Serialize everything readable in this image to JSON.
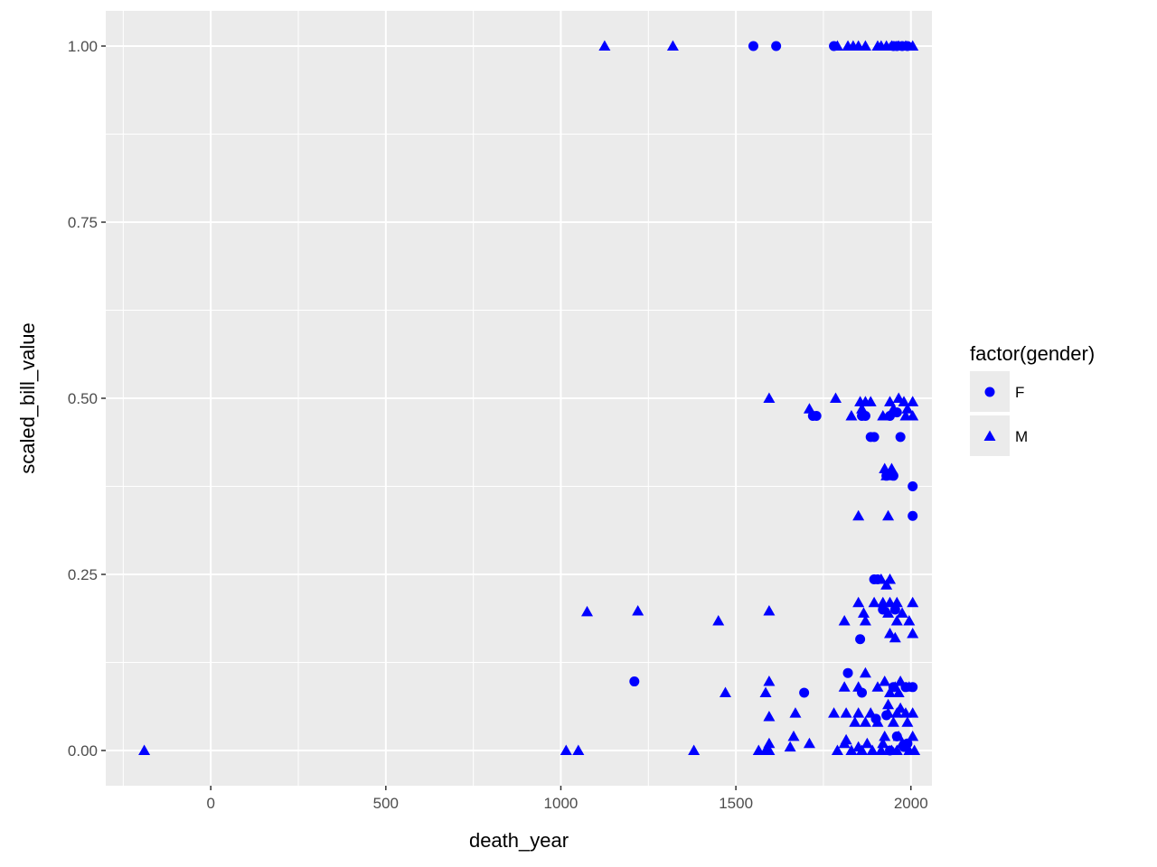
{
  "chart_data": {
    "type": "scatter",
    "title": "",
    "xlabel": "death_year",
    "ylabel": "scaled_bill_value",
    "xlim": [
      -300,
      2060
    ],
    "ylim": [
      -0.05,
      1.05
    ],
    "x_ticks": [
      0,
      500,
      1000,
      1500,
      2000
    ],
    "y_ticks": [
      0.0,
      0.25,
      0.5,
      0.75,
      1.0
    ],
    "y_tick_labels": [
      "0.00",
      "0.25",
      "0.50",
      "0.75",
      "1.00"
    ],
    "x_tick_labels": [
      "0",
      "500",
      "1000",
      "1500",
      "2000"
    ],
    "grid": true,
    "point_color": "#0000ff",
    "panel_background": "#ebebeb",
    "legend": {
      "title": "factor(gender)",
      "position": "right"
    },
    "series": [
      {
        "name": "F",
        "shape": "circle",
        "points": [
          [
            1550,
            1.0
          ],
          [
            1615,
            1.0
          ],
          [
            1780,
            1.0
          ],
          [
            1950,
            1.0
          ],
          [
            1960,
            1.0
          ],
          [
            1975,
            1.0
          ],
          [
            1990,
            1.0
          ],
          [
            1720,
            0.475
          ],
          [
            1730,
            0.475
          ],
          [
            1860,
            0.475
          ],
          [
            1870,
            0.475
          ],
          [
            1940,
            0.475
          ],
          [
            1960,
            0.48
          ],
          [
            1885,
            0.445
          ],
          [
            1895,
            0.445
          ],
          [
            1970,
            0.445
          ],
          [
            1930,
            0.39
          ],
          [
            1950,
            0.39
          ],
          [
            2005,
            0.375
          ],
          [
            2005,
            0.333
          ],
          [
            1895,
            0.243
          ],
          [
            1905,
            0.243
          ],
          [
            1920,
            0.2
          ],
          [
            1955,
            0.2
          ],
          [
            1855,
            0.158
          ],
          [
            1210,
            0.098
          ],
          [
            1695,
            0.082
          ],
          [
            1820,
            0.11
          ],
          [
            1860,
            0.082
          ],
          [
            1950,
            0.09
          ],
          [
            1985,
            0.09
          ],
          [
            2005,
            0.09
          ],
          [
            1900,
            0.045
          ],
          [
            1930,
            0.05
          ],
          [
            1960,
            0.02
          ],
          [
            1980,
            0.005
          ],
          [
            1990,
            0.01
          ],
          [
            1940,
            0.0
          ]
        ]
      },
      {
        "name": "M",
        "shape": "triangle",
        "points": [
          [
            1125,
            1.0
          ],
          [
            1320,
            1.0
          ],
          [
            1790,
            1.0
          ],
          [
            1820,
            1.0
          ],
          [
            1835,
            1.0
          ],
          [
            1850,
            1.0
          ],
          [
            1870,
            1.0
          ],
          [
            1905,
            1.0
          ],
          [
            1915,
            1.0
          ],
          [
            1930,
            1.0
          ],
          [
            1945,
            1.0
          ],
          [
            1965,
            1.0
          ],
          [
            1985,
            1.0
          ],
          [
            2005,
            1.0
          ],
          [
            1595,
            0.5
          ],
          [
            1785,
            0.5
          ],
          [
            1855,
            0.495
          ],
          [
            1870,
            0.495
          ],
          [
            1885,
            0.495
          ],
          [
            1940,
            0.495
          ],
          [
            1965,
            0.5
          ],
          [
            1980,
            0.495
          ],
          [
            2005,
            0.495
          ],
          [
            1710,
            0.485
          ],
          [
            1860,
            0.485
          ],
          [
            1950,
            0.485
          ],
          [
            1990,
            0.485
          ],
          [
            1830,
            0.475
          ],
          [
            1920,
            0.475
          ],
          [
            1985,
            0.475
          ],
          [
            2005,
            0.475
          ],
          [
            1925,
            0.4
          ],
          [
            1945,
            0.4
          ],
          [
            1930,
            0.39
          ],
          [
            1850,
            0.333
          ],
          [
            1935,
            0.333
          ],
          [
            1915,
            0.243
          ],
          [
            1930,
            0.235
          ],
          [
            1940,
            0.243
          ],
          [
            1075,
            0.197
          ],
          [
            1220,
            0.198
          ],
          [
            1595,
            0.198
          ],
          [
            1850,
            0.21
          ],
          [
            1895,
            0.21
          ],
          [
            1920,
            0.21
          ],
          [
            1940,
            0.21
          ],
          [
            1960,
            0.21
          ],
          [
            2005,
            0.21
          ],
          [
            1865,
            0.195
          ],
          [
            1935,
            0.195
          ],
          [
            1975,
            0.195
          ],
          [
            1450,
            0.184
          ],
          [
            1810,
            0.184
          ],
          [
            1870,
            0.184
          ],
          [
            1960,
            0.184
          ],
          [
            1995,
            0.184
          ],
          [
            1940,
            0.166
          ],
          [
            1955,
            0.16
          ],
          [
            2005,
            0.166
          ],
          [
            1870,
            0.11
          ],
          [
            1595,
            0.098
          ],
          [
            1925,
            0.098
          ],
          [
            1970,
            0.098
          ],
          [
            1810,
            0.09
          ],
          [
            1850,
            0.09
          ],
          [
            1905,
            0.09
          ],
          [
            1955,
            0.09
          ],
          [
            1995,
            0.09
          ],
          [
            1470,
            0.082
          ],
          [
            1585,
            0.082
          ],
          [
            1940,
            0.082
          ],
          [
            1965,
            0.082
          ],
          [
            1935,
            0.065
          ],
          [
            1970,
            0.06
          ],
          [
            1595,
            0.048
          ],
          [
            1670,
            0.053
          ],
          [
            1780,
            0.053
          ],
          [
            1815,
            0.053
          ],
          [
            1850,
            0.053
          ],
          [
            1885,
            0.053
          ],
          [
            1935,
            0.053
          ],
          [
            1960,
            0.053
          ],
          [
            1985,
            0.053
          ],
          [
            2005,
            0.053
          ],
          [
            1840,
            0.04
          ],
          [
            1870,
            0.04
          ],
          [
            1905,
            0.04
          ],
          [
            1950,
            0.04
          ],
          [
            1990,
            0.04
          ],
          [
            1665,
            0.02
          ],
          [
            1815,
            0.015
          ],
          [
            1925,
            0.02
          ],
          [
            1965,
            0.02
          ],
          [
            2005,
            0.02
          ],
          [
            1595,
            0.01
          ],
          [
            1655,
            0.005
          ],
          [
            1710,
            0.01
          ],
          [
            1810,
            0.01
          ],
          [
            1850,
            0.005
          ],
          [
            1875,
            0.01
          ],
          [
            1920,
            0.01
          ],
          [
            1975,
            0.01
          ],
          [
            -190,
            0.0
          ],
          [
            1015,
            0.0
          ],
          [
            1050,
            0.0
          ],
          [
            1380,
            0.0
          ],
          [
            1565,
            0.0
          ],
          [
            1585,
            0.0
          ],
          [
            1595,
            0.0
          ],
          [
            1790,
            0.0
          ],
          [
            1830,
            0.0
          ],
          [
            1860,
            0.0
          ],
          [
            1890,
            0.0
          ],
          [
            1915,
            0.0
          ],
          [
            1945,
            0.0
          ],
          [
            1960,
            0.0
          ],
          [
            1995,
            0.0
          ],
          [
            2010,
            0.0
          ]
        ]
      }
    ]
  }
}
